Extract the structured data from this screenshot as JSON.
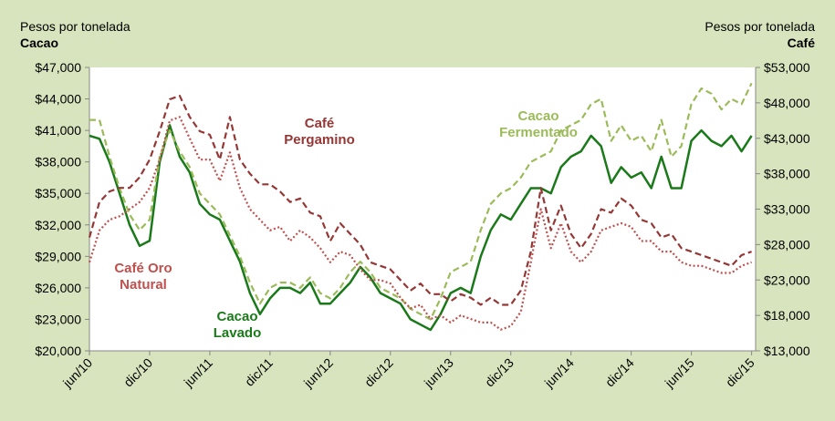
{
  "chart_data": {
    "type": "line",
    "y_title": "Pesos por tonelada",
    "y_unit_name": "Cacao",
    "y2_title": "Pesos por tonelada",
    "y2_unit_name": "Café",
    "categories": [
      "jun/10",
      null,
      null,
      null,
      null,
      null,
      "dic/10",
      null,
      null,
      null,
      null,
      null,
      "jun/11",
      null,
      null,
      null,
      null,
      null,
      "dic/11",
      null,
      null,
      null,
      null,
      null,
      "jun/12",
      null,
      null,
      null,
      null,
      null,
      "dic/12",
      null,
      null,
      null,
      null,
      null,
      "jun/13",
      null,
      null,
      null,
      null,
      null,
      "dic/13",
      null,
      null,
      null,
      null,
      null,
      "jun/14",
      null,
      null,
      null,
      null,
      null,
      "dic/14",
      null,
      null,
      null,
      null,
      null,
      "jun/15",
      null,
      null,
      null,
      null,
      null,
      "dic/15"
    ],
    "ylim": [
      20000,
      47000
    ],
    "yticks": [
      {
        "value": 20000,
        "label": "$20,000"
      },
      {
        "value": 23000,
        "label": "$23,000"
      },
      {
        "value": 26000,
        "label": "$26,000"
      },
      {
        "value": 29000,
        "label": "$29,000"
      },
      {
        "value": 32000,
        "label": "$32,000"
      },
      {
        "value": 35000,
        "label": "$35,000"
      },
      {
        "value": 38000,
        "label": "$38,000"
      },
      {
        "value": 41000,
        "label": "$41,000"
      },
      {
        "value": 44000,
        "label": "$44,000"
      },
      {
        "value": 47000,
        "label": "$47,000"
      }
    ],
    "y2lim": [
      13000,
      53000
    ],
    "y2ticks": [
      {
        "value": 13000,
        "label": "$13,000"
      },
      {
        "value": 18000,
        "label": "$18,000"
      },
      {
        "value": 23000,
        "label": "$23,000"
      },
      {
        "value": 28000,
        "label": "$28,000"
      },
      {
        "value": 33000,
        "label": "$33,000"
      },
      {
        "value": 38000,
        "label": "$38,000"
      },
      {
        "value": 43000,
        "label": "$43,000"
      },
      {
        "value": 48000,
        "label": "$48,000"
      },
      {
        "value": 53000,
        "label": "$53,000"
      }
    ],
    "series": [
      {
        "name": "Cacao Lavado",
        "color": "#1a7a1a",
        "line_style": "solid",
        "values": [
          40500,
          40200,
          38000,
          35000,
          32000,
          30000,
          30500,
          38000,
          41500,
          38500,
          37000,
          34000,
          33000,
          32500,
          30500,
          28500,
          25500,
          23500,
          25000,
          26000,
          26000,
          25500,
          26500,
          24500,
          24500,
          25500,
          26500,
          28000,
          27000,
          25500,
          25000,
          24500,
          23000,
          22500,
          22000,
          23500,
          25500,
          26000,
          25500,
          29000,
          31500,
          33000,
          32500,
          34000,
          35500,
          35500,
          35000,
          37500,
          38500,
          39000,
          40500,
          39500,
          36000,
          37500,
          36500,
          37000,
          35500,
          38500,
          35500,
          35500,
          40000,
          41000,
          40000,
          39500,
          40500,
          39000,
          40500
        ]
      },
      {
        "name": "Cacao Fermentado",
        "color": "#9bbb59",
        "line_style": "dashed",
        "values": [
          42000,
          42000,
          38500,
          35500,
          33000,
          31500,
          32500,
          38500,
          41000,
          39000,
          37500,
          35000,
          34000,
          33000,
          31000,
          29000,
          26500,
          24500,
          26000,
          26500,
          26500,
          26000,
          27000,
          25500,
          25000,
          26000,
          27500,
          28500,
          27500,
          26000,
          25500,
          25000,
          24000,
          23500,
          23000,
          25000,
          27500,
          28000,
          28500,
          31500,
          34000,
          35000,
          35500,
          36500,
          38000,
          38500,
          39000,
          41000,
          41500,
          42000,
          43500,
          44000,
          40000,
          41500,
          40000,
          40500,
          39000,
          42000,
          38500,
          39500,
          43500,
          45000,
          44500,
          43000,
          44000,
          43500,
          45500
        ]
      },
      {
        "name": "Café Pergamino",
        "color": "#953735",
        "line_style": "dashed",
        "axis": "y2",
        "values": [
          29000,
          34000,
          35500,
          36000,
          36000,
          37500,
          40000,
          44000,
          48500,
          49000,
          46000,
          44000,
          43500,
          40000,
          46000,
          40000,
          38000,
          36500,
          36500,
          35500,
          34000,
          34500,
          32500,
          32000,
          28500,
          31000,
          29500,
          28000,
          25500,
          25000,
          24500,
          23000,
          21500,
          22500,
          21000,
          21000,
          20000,
          21000,
          20500,
          19500,
          20500,
          19500,
          19500,
          21500,
          27000,
          36000,
          30000,
          33500,
          29500,
          27500,
          29500,
          33000,
          32500,
          34500,
          33500,
          31500,
          31000,
          29000,
          29500,
          27500,
          27000,
          26500,
          26000,
          25500,
          25000,
          26500,
          27000
        ]
      },
      {
        "name": "Café Oro Natural",
        "color": "#c0504d",
        "line_style": "dotted",
        "axis": "y2",
        "values": [
          25500,
          30000,
          31500,
          32000,
          33000,
          34000,
          36000,
          40000,
          45500,
          46000,
          43000,
          40000,
          40000,
          37000,
          41000,
          36000,
          33000,
          31500,
          30000,
          30500,
          28500,
          30000,
          29000,
          27500,
          25500,
          27000,
          26500,
          24500,
          23000,
          23000,
          22500,
          20500,
          19000,
          19500,
          17500,
          18000,
          17000,
          18000,
          17500,
          17000,
          17000,
          16000,
          16500,
          18500,
          25500,
          33000,
          27500,
          31000,
          27000,
          25500,
          27000,
          30000,
          30500,
          31000,
          30500,
          28500,
          28500,
          27000,
          27000,
          25500,
          25000,
          25000,
          24500,
          24000,
          24000,
          25000,
          25500
        ]
      }
    ]
  }
}
